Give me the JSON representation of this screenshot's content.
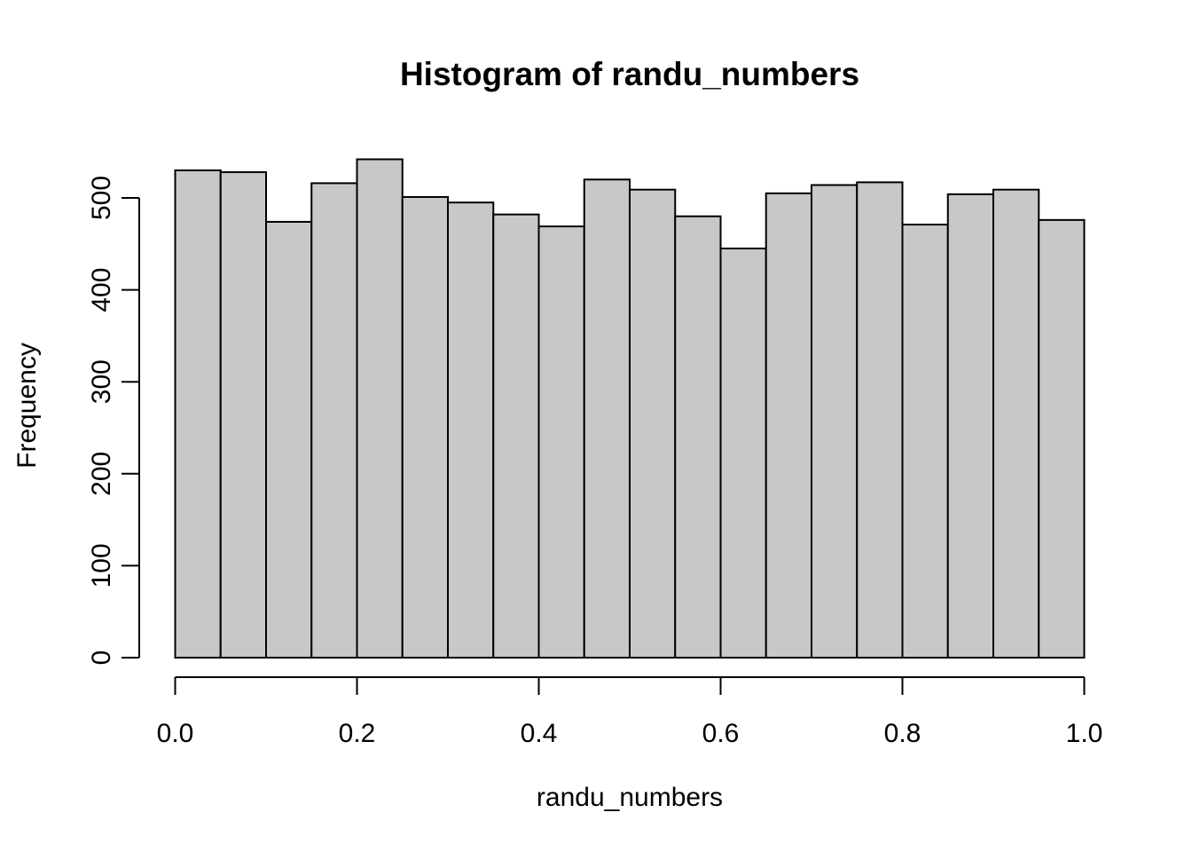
{
  "chart_data": {
    "type": "bar",
    "title": "Histogram of randu_numbers",
    "xlabel": "randu_numbers",
    "ylabel": "Frequency",
    "bin_start": 0.0,
    "bin_width": 0.05,
    "categories": [
      "0.00-0.05",
      "0.05-0.10",
      "0.10-0.15",
      "0.15-0.20",
      "0.20-0.25",
      "0.25-0.30",
      "0.30-0.35",
      "0.35-0.40",
      "0.40-0.45",
      "0.45-0.50",
      "0.50-0.55",
      "0.55-0.60",
      "0.60-0.65",
      "0.65-0.70",
      "0.70-0.75",
      "0.75-0.80",
      "0.80-0.85",
      "0.85-0.90",
      "0.90-0.95",
      "0.95-1.00"
    ],
    "values": [
      530,
      528,
      474,
      516,
      542,
      501,
      495,
      482,
      469,
      520,
      509,
      480,
      445,
      505,
      514,
      517,
      471,
      504,
      509,
      476
    ],
    "xlim": [
      0.0,
      1.0
    ],
    "ylim": [
      0,
      500
    ],
    "x_ticks": [
      0.0,
      0.2,
      0.4,
      0.6,
      0.8,
      1.0
    ],
    "x_tick_labels": [
      "0.0",
      "0.2",
      "0.4",
      "0.6",
      "0.8",
      "1.0"
    ],
    "y_ticks": [
      0,
      100,
      200,
      300,
      400,
      500
    ],
    "y_tick_labels": [
      "0",
      "100",
      "200",
      "300",
      "400",
      "500"
    ],
    "grid": "off",
    "legend": "none",
    "bar_fill": "#c8c8c8",
    "bar_stroke": "#000000",
    "axis_color": "#000000",
    "background": "#ffffff"
  }
}
